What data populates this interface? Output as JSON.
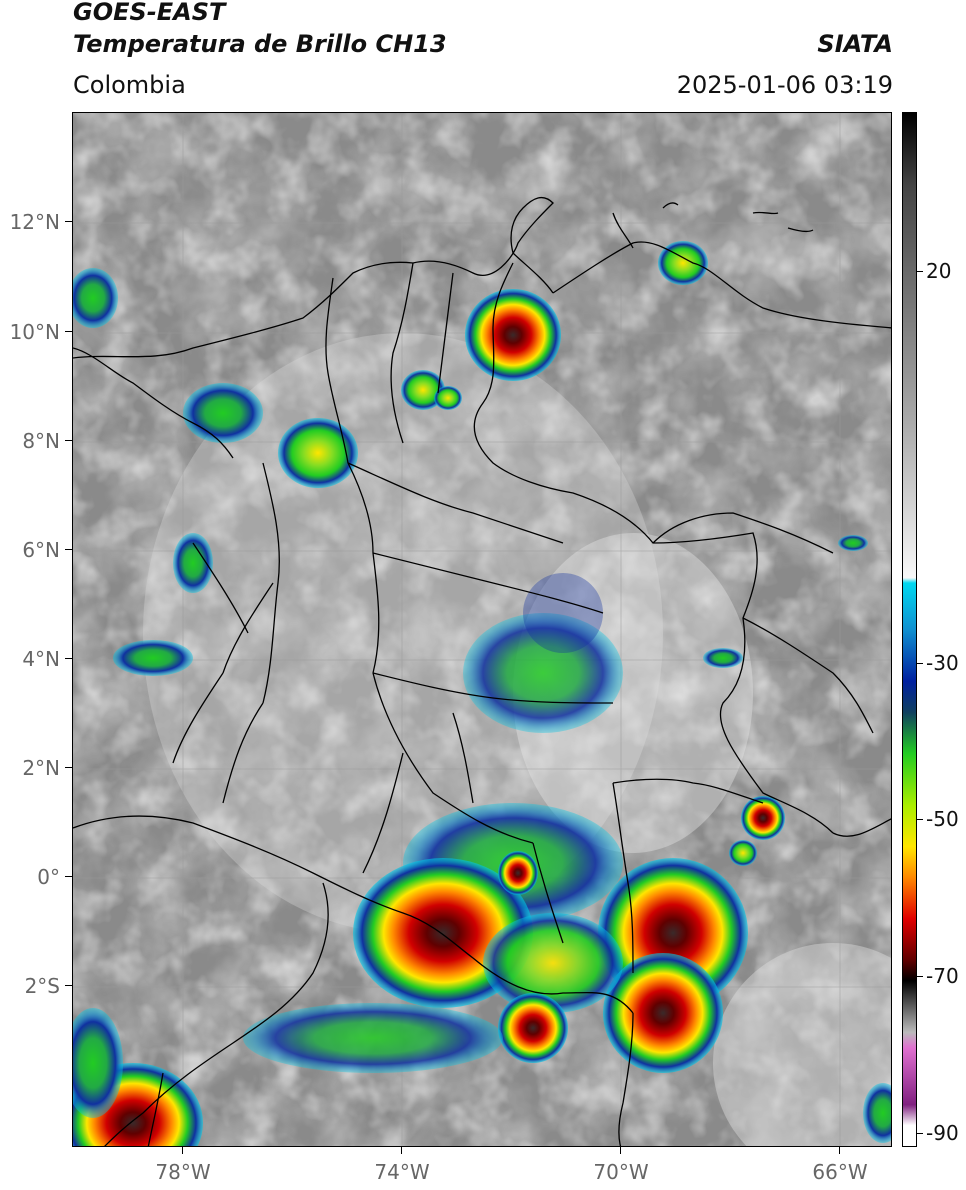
{
  "header": {
    "title_line1": "GOES-EAST",
    "title_line2": "Temperatura de Brillo CH13",
    "brand": "SIATA",
    "region": "Colombia",
    "timestamp": "2025-01-06 03:19"
  },
  "map": {
    "lat_labels": [
      "12°N",
      "10°N",
      "8°N",
      "6°N",
      "4°N",
      "2°N",
      "0°",
      "2°S"
    ],
    "lon_labels": [
      "78°W",
      "74°W",
      "70°W",
      "66°W"
    ],
    "background_color": "#8a8a8a",
    "border_color": "#000000"
  },
  "colorbar": {
    "labels": [
      "20",
      "-30",
      "-50",
      "-70",
      "-90"
    ],
    "colors": {
      "warm_grey": "#8c8c8c",
      "cyan": "#00c8e6",
      "blue": "#1030a0",
      "green": "#22cc22",
      "yellow": "#ffe600",
      "orange": "#ff8800",
      "red": "#d00000",
      "dark_red": "#600000",
      "black": "#000000",
      "pink": "#e060c0",
      "purple": "#802080",
      "white": "#ffffff"
    }
  }
}
